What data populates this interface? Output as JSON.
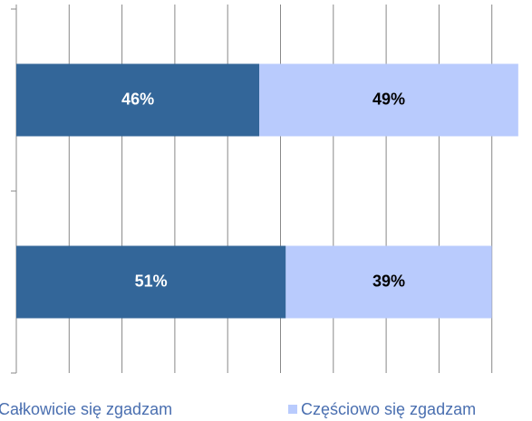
{
  "chart_data": {
    "type": "stacked_barh",
    "categories": [
      null,
      null
    ],
    "series": [
      {
        "name": "Całkowicie się zgadzam",
        "color": "#336699",
        "values": [
          46,
          51
        ],
        "value_labels": [
          "46%",
          "51%"
        ]
      },
      {
        "name": "Częściowo się zgadzam",
        "color": "#b9cbfd",
        "values": [
          49,
          39
        ],
        "value_labels": [
          "49%",
          "39%"
        ]
      }
    ],
    "xlim": [
      0,
      100
    ],
    "xticks": [
      0,
      10,
      20,
      30,
      40,
      50,
      60,
      70,
      80,
      90
    ],
    "grid": true,
    "legend": "bottom"
  }
}
